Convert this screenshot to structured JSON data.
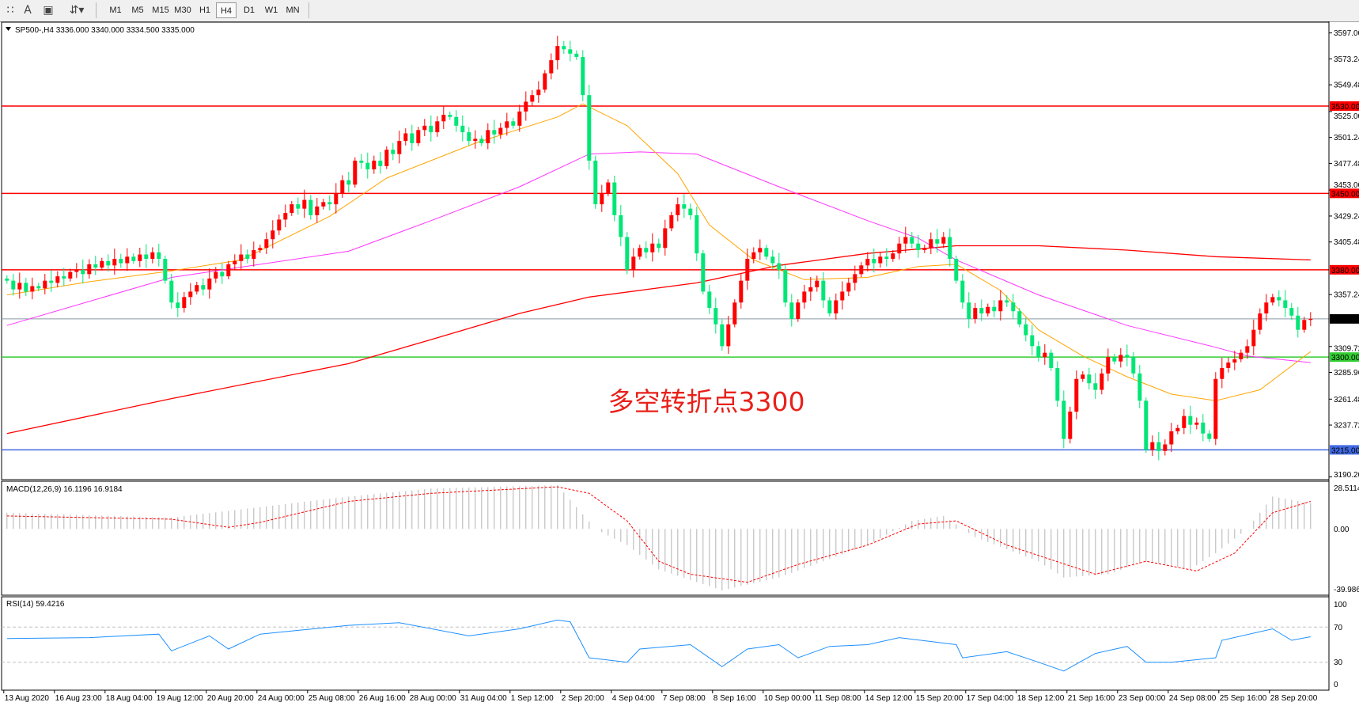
{
  "toolbar": {
    "icons": [
      "grid-icon",
      "text-icon",
      "text-label-icon",
      "arrows-icon"
    ],
    "timeframes": [
      "M1",
      "M5",
      "M15",
      "M30",
      "H1",
      "H4",
      "D1",
      "W1",
      "MN"
    ],
    "selected_timeframe": "H4"
  },
  "price_pane": {
    "header": "SP500-,H4  3336.000 3340.000 3334.500 3335.000",
    "annotation": "多空转折点3300",
    "annotation_color": "#e8211b"
  },
  "macd_pane": {
    "header": "MACD(12,26,9) 16.1196 16.9184"
  },
  "rsi_pane": {
    "header": "RSI(14) 59.4216"
  },
  "colors": {
    "bull": "#ff0000",
    "bear": "#00e676",
    "ma_fast": "#ffa500",
    "ma_mid": "#ff33ff",
    "ma_slow": "#ff0000",
    "macd_hist": "#b4b4b4",
    "macd_signal": "#ff0000",
    "rsi": "#1e90ff"
  },
  "chart_data": [
    {
      "type": "candlestick",
      "symbol": "SP500-",
      "timeframe": "H4",
      "ylim": [
        3190.2,
        3597.0
      ],
      "y_ticks": [
        "3597.00",
        "3573.24",
        "3549.48",
        "3525.00",
        "3501.24",
        "3477.48",
        "3453.00",
        "3429.24",
        "3405.48",
        "3357.24",
        "3309.72",
        "3285.96",
        "3261.48",
        "3237.72",
        "3190.20"
      ],
      "x_ticks": [
        "13 Aug 2020",
        "16 Aug 23:00",
        "18 Aug 04:00",
        "19 Aug 12:00",
        "20 Aug 20:00",
        "24 Aug 00:00",
        "25 Aug 08:00",
        "26 Aug 16:00",
        "28 Aug 00:00",
        "31 Aug 04:00",
        "1 Sep 12:00",
        "2 Sep 20:00",
        "4 Sep 04:00",
        "7 Sep 08:00",
        "8 Sep 16:00",
        "10 Sep 00:00",
        "11 Sep 08:00",
        "14 Sep 12:00",
        "15 Sep 20:00",
        "17 Sep 04:00",
        "18 Sep 12:00",
        "21 Sep 16:00",
        "23 Sep 00:00",
        "24 Sep 08:00",
        "25 Sep 16:00",
        "28 Sep 20:00"
      ],
      "close": [
        3370,
        3362,
        3368,
        3360,
        3365,
        3363,
        3370,
        3368,
        3374,
        3372,
        3378,
        3380,
        3376,
        3385,
        3382,
        3388,
        3384,
        3390,
        3386,
        3392,
        3388,
        3394,
        3390,
        3396,
        3390,
        3370,
        3350,
        3345,
        3355,
        3360,
        3366,
        3362,
        3372,
        3378,
        3374,
        3385,
        3388,
        3394,
        3390,
        3398,
        3400,
        3408,
        3416,
        3426,
        3432,
        3440,
        3436,
        3444,
        3430,
        3438,
        3442,
        3440,
        3450,
        3462,
        3458,
        3480,
        3478,
        3472,
        3480,
        3475,
        3490,
        3486,
        3498,
        3505,
        3496,
        3508,
        3512,
        3506,
        3516,
        3522,
        3520,
        3512,
        3506,
        3498,
        3500,
        3496,
        3508,
        3504,
        3510,
        3516,
        3512,
        3525,
        3534,
        3540,
        3545,
        3560,
        3572,
        3585,
        3582,
        3578,
        3575,
        3540,
        3480,
        3440,
        3450,
        3460,
        3430,
        3410,
        3380,
        3392,
        3400,
        3396,
        3404,
        3400,
        3418,
        3430,
        3440,
        3436,
        3430,
        3395,
        3360,
        3345,
        3330,
        3310,
        3330,
        3350,
        3370,
        3390,
        3396,
        3400,
        3392,
        3386,
        3380,
        3350,
        3335,
        3350,
        3360,
        3364,
        3370,
        3352,
        3340,
        3352,
        3360,
        3368,
        3376,
        3384,
        3390,
        3386,
        3392,
        3390,
        3395,
        3404,
        3410,
        3404,
        3398,
        3400,
        3408,
        3404,
        3410,
        3390,
        3370,
        3350,
        3335,
        3345,
        3340,
        3346,
        3342,
        3352,
        3350,
        3342,
        3330,
        3320,
        3310,
        3300,
        3304,
        3290,
        3260,
        3225,
        3250,
        3280,
        3284,
        3276,
        3270,
        3285,
        3300,
        3296,
        3302,
        3300,
        3285,
        3260,
        3215,
        3222,
        3214,
        3220,
        3232,
        3235,
        3246,
        3238,
        3240,
        3230,
        3225,
        3280,
        3290,
        3295,
        3298,
        3304,
        3310,
        3325,
        3340,
        3350,
        3355,
        3352,
        3345,
        3338,
        3325,
        3334,
        3335
      ],
      "moving_averages": {
        "fast": [
          [
            0,
            3357
          ],
          [
            13,
            3369
          ],
          [
            26,
            3379
          ],
          [
            37,
            3389
          ],
          [
            51,
            3429
          ],
          [
            60,
            3464
          ],
          [
            74,
            3496
          ],
          [
            87,
            3520
          ],
          [
            91,
            3532
          ],
          [
            98,
            3512
          ],
          [
            106,
            3468
          ],
          [
            111,
            3421
          ],
          [
            118,
            3389
          ],
          [
            126,
            3371
          ],
          [
            136,
            3373
          ],
          [
            144,
            3383
          ],
          [
            150,
            3385
          ],
          [
            157,
            3361
          ],
          [
            163,
            3325
          ],
          [
            170,
            3301
          ],
          [
            177,
            3282
          ],
          [
            184,
            3266
          ],
          [
            191,
            3260
          ],
          [
            198,
            3270
          ],
          [
            206,
            3305
          ]
        ],
        "mid": [
          [
            0,
            3329
          ],
          [
            26,
            3373
          ],
          [
            54,
            3397
          ],
          [
            67,
            3425
          ],
          [
            81,
            3456
          ],
          [
            92,
            3486
          ],
          [
            100,
            3488
          ],
          [
            109,
            3486
          ],
          [
            122,
            3456
          ],
          [
            136,
            3425
          ],
          [
            144,
            3409
          ],
          [
            150,
            3389
          ],
          [
            163,
            3357
          ],
          [
            177,
            3329
          ],
          [
            191,
            3309
          ],
          [
            196,
            3301
          ],
          [
            206,
            3295
          ]
        ],
        "slow": [
          [
            0,
            3230
          ],
          [
            26,
            3262
          ],
          [
            54,
            3294
          ],
          [
            67,
            3316
          ],
          [
            81,
            3340
          ],
          [
            92,
            3355
          ],
          [
            109,
            3368
          ],
          [
            122,
            3384
          ],
          [
            136,
            3395
          ],
          [
            150,
            3402
          ],
          [
            163,
            3402
          ],
          [
            177,
            3398
          ],
          [
            191,
            3392
          ],
          [
            206,
            3389
          ]
        ]
      },
      "horizontal_levels": [
        {
          "value": 3530,
          "label": "3530.00",
          "color": "#ff0000"
        },
        {
          "value": 3450,
          "label": "3450.00",
          "color": "#ff0000"
        },
        {
          "value": 3380,
          "label": "3380.00",
          "color": "#ff0000"
        },
        {
          "value": 3335,
          "label": "3335.00",
          "color": "#000000",
          "line_color": "#8a9aa8"
        },
        {
          "value": 3300,
          "label": "3300.00",
          "color": "#32cd32"
        },
        {
          "value": 3215,
          "label": "3215.00",
          "color": "#4169e1"
        }
      ]
    },
    {
      "type": "macd",
      "params": "12,26,9",
      "ylim": [
        -39.9869,
        28.5114
      ],
      "y_ticks": [
        "28.5114",
        "0.00",
        "-39.9869"
      ],
      "histogram": [
        [
          0,
          10
        ],
        [
          26,
          7
        ],
        [
          54,
          20
        ],
        [
          67,
          25
        ],
        [
          87,
          27
        ],
        [
          93,
          0
        ],
        [
          98,
          -10
        ],
        [
          103,
          -25
        ],
        [
          113,
          -38
        ],
        [
          122,
          -30
        ],
        [
          136,
          -10
        ],
        [
          143,
          5
        ],
        [
          148,
          8
        ],
        [
          153,
          -5
        ],
        [
          163,
          -20
        ],
        [
          167,
          -30
        ],
        [
          174,
          -28
        ],
        [
          180,
          -20
        ],
        [
          187,
          -25
        ],
        [
          191,
          -15
        ],
        [
          196,
          0
        ],
        [
          200,
          20
        ],
        [
          206,
          16
        ]
      ],
      "signal": [
        [
          0,
          8
        ],
        [
          26,
          6
        ],
        [
          35,
          1
        ],
        [
          40,
          4
        ],
        [
          54,
          17
        ],
        [
          67,
          22
        ],
        [
          87,
          26
        ],
        [
          92,
          22
        ],
        [
          98,
          5
        ],
        [
          103,
          -20
        ],
        [
          108,
          -28
        ],
        [
          117,
          -33
        ],
        [
          125,
          -22
        ],
        [
          136,
          -10
        ],
        [
          144,
          3
        ],
        [
          150,
          5
        ],
        [
          158,
          -10
        ],
        [
          172,
          -28
        ],
        [
          180,
          -20
        ],
        [
          188,
          -26
        ],
        [
          194,
          -15
        ],
        [
          200,
          10
        ],
        [
          206,
          17
        ]
      ]
    },
    {
      "type": "line",
      "indicator": "RSI(14)",
      "ylim": [
        0,
        100
      ],
      "y_ticks": [
        "100",
        "70",
        "30",
        "0"
      ],
      "levels": [
        70,
        30
      ],
      "values": [
        [
          0,
          57
        ],
        [
          13,
          58
        ],
        [
          24,
          62
        ],
        [
          26,
          43
        ],
        [
          32,
          60
        ],
        [
          35,
          45
        ],
        [
          40,
          62
        ],
        [
          54,
          72
        ],
        [
          62,
          75
        ],
        [
          73,
          60
        ],
        [
          81,
          68
        ],
        [
          87,
          78
        ],
        [
          89,
          76
        ],
        [
          92,
          35
        ],
        [
          98,
          30
        ],
        [
          100,
          45
        ],
        [
          108,
          50
        ],
        [
          113,
          25
        ],
        [
          117,
          45
        ],
        [
          122,
          50
        ],
        [
          125,
          35
        ],
        [
          130,
          48
        ],
        [
          136,
          50
        ],
        [
          141,
          58
        ],
        [
          150,
          50
        ],
        [
          151,
          35
        ],
        [
          158,
          42
        ],
        [
          163,
          30
        ],
        [
          167,
          20
        ],
        [
          172,
          40
        ],
        [
          177,
          48
        ],
        [
          180,
          30
        ],
        [
          184,
          30
        ],
        [
          191,
          35
        ],
        [
          192,
          55
        ],
        [
          200,
          68
        ],
        [
          203,
          55
        ],
        [
          206,
          59
        ]
      ]
    }
  ]
}
